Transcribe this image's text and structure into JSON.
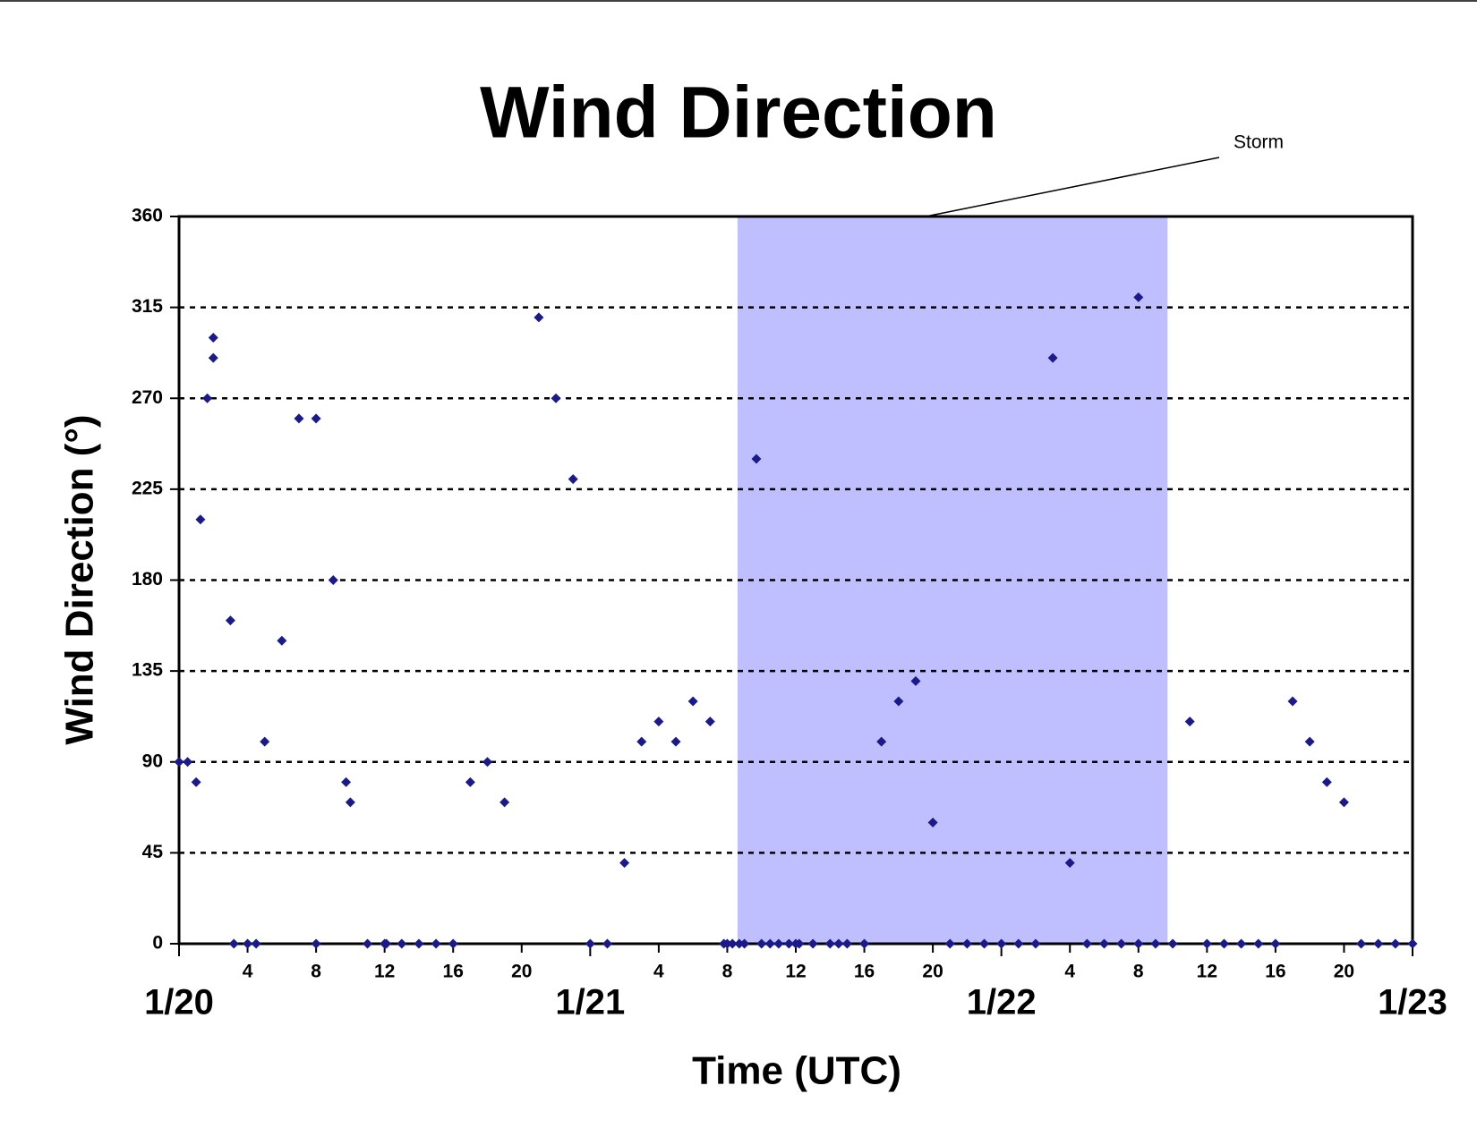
{
  "chart_data": {
    "type": "scatter",
    "title": "Wind Direction",
    "xlabel": "Time (UTC)",
    "ylabel": "Wind Direction (°)",
    "annotation": "Storm",
    "shaded_range": [
      32.6,
      57.7
    ],
    "shaded_color": "#bfbfff",
    "color": "#1a1a8c",
    "xlim": [
      0,
      72
    ],
    "ylim": [
      0,
      360
    ],
    "yticks": [
      0,
      45,
      90,
      135,
      180,
      225,
      270,
      315,
      360
    ],
    "xticks": [
      {
        "value": 0,
        "label": "1/20"
      },
      4,
      8,
      12,
      16,
      20,
      {
        "value": 24,
        "label": "1/21"
      },
      {
        "value": 28,
        "label": "4"
      },
      {
        "value": 32,
        "label": "8"
      },
      {
        "value": 36,
        "label": "12"
      },
      {
        "value": 40,
        "label": "16"
      },
      {
        "value": 44,
        "label": "20"
      },
      {
        "value": 48,
        "label": "1/22"
      },
      {
        "value": 52,
        "label": "4"
      },
      {
        "value": 56,
        "label": "8"
      },
      {
        "value": 60,
        "label": "12"
      },
      {
        "value": 64,
        "label": "16"
      },
      {
        "value": 68,
        "label": "20"
      },
      {
        "value": 72,
        "label": "1/23"
      }
    ],
    "grid": true,
    "x": [
      0,
      0.5,
      1,
      1.25,
      1.65,
      2,
      2,
      3,
      3.2,
      4,
      4.5,
      5,
      6,
      7,
      8,
      8,
      9,
      9.75,
      10,
      11,
      12,
      12.1,
      13,
      14,
      15,
      16,
      17,
      18,
      19,
      21,
      22,
      23,
      24,
      25,
      26,
      27,
      28,
      29,
      30,
      31,
      31.8,
      32,
      32.3,
      32.7,
      33,
      33.7,
      34,
      34.5,
      35,
      35.6,
      36,
      36.2,
      37,
      38,
      38.5,
      39,
      40,
      41,
      42,
      43,
      44,
      45,
      46,
      47,
      48,
      49,
      50,
      51,
      52,
      53,
      54,
      55,
      56,
      56,
      57,
      58,
      59,
      60,
      61,
      62,
      63,
      64,
      65,
      66,
      67,
      68,
      69,
      70,
      71,
      72
    ],
    "values": [
      90,
      90,
      80,
      210,
      270,
      290,
      300,
      160,
      0,
      0,
      0,
      100,
      150,
      260,
      260,
      0,
      180,
      80,
      70,
      0,
      0,
      0,
      0,
      0,
      0,
      0,
      80,
      90,
      70,
      310,
      270,
      230,
      0,
      0,
      40,
      100,
      110,
      100,
      120,
      110,
      0,
      0,
      0,
      0,
      0,
      240,
      0,
      0,
      0,
      0,
      0,
      0,
      0,
      0,
      0,
      0,
      0,
      100,
      120,
      130,
      60,
      0,
      0,
      0,
      0,
      0,
      0,
      290,
      40,
      0,
      0,
      0,
      320,
      0,
      0,
      0,
      110,
      0,
      0,
      0,
      0,
      0,
      120,
      100,
      80,
      70,
      0,
      0,
      0,
      0
    ]
  }
}
